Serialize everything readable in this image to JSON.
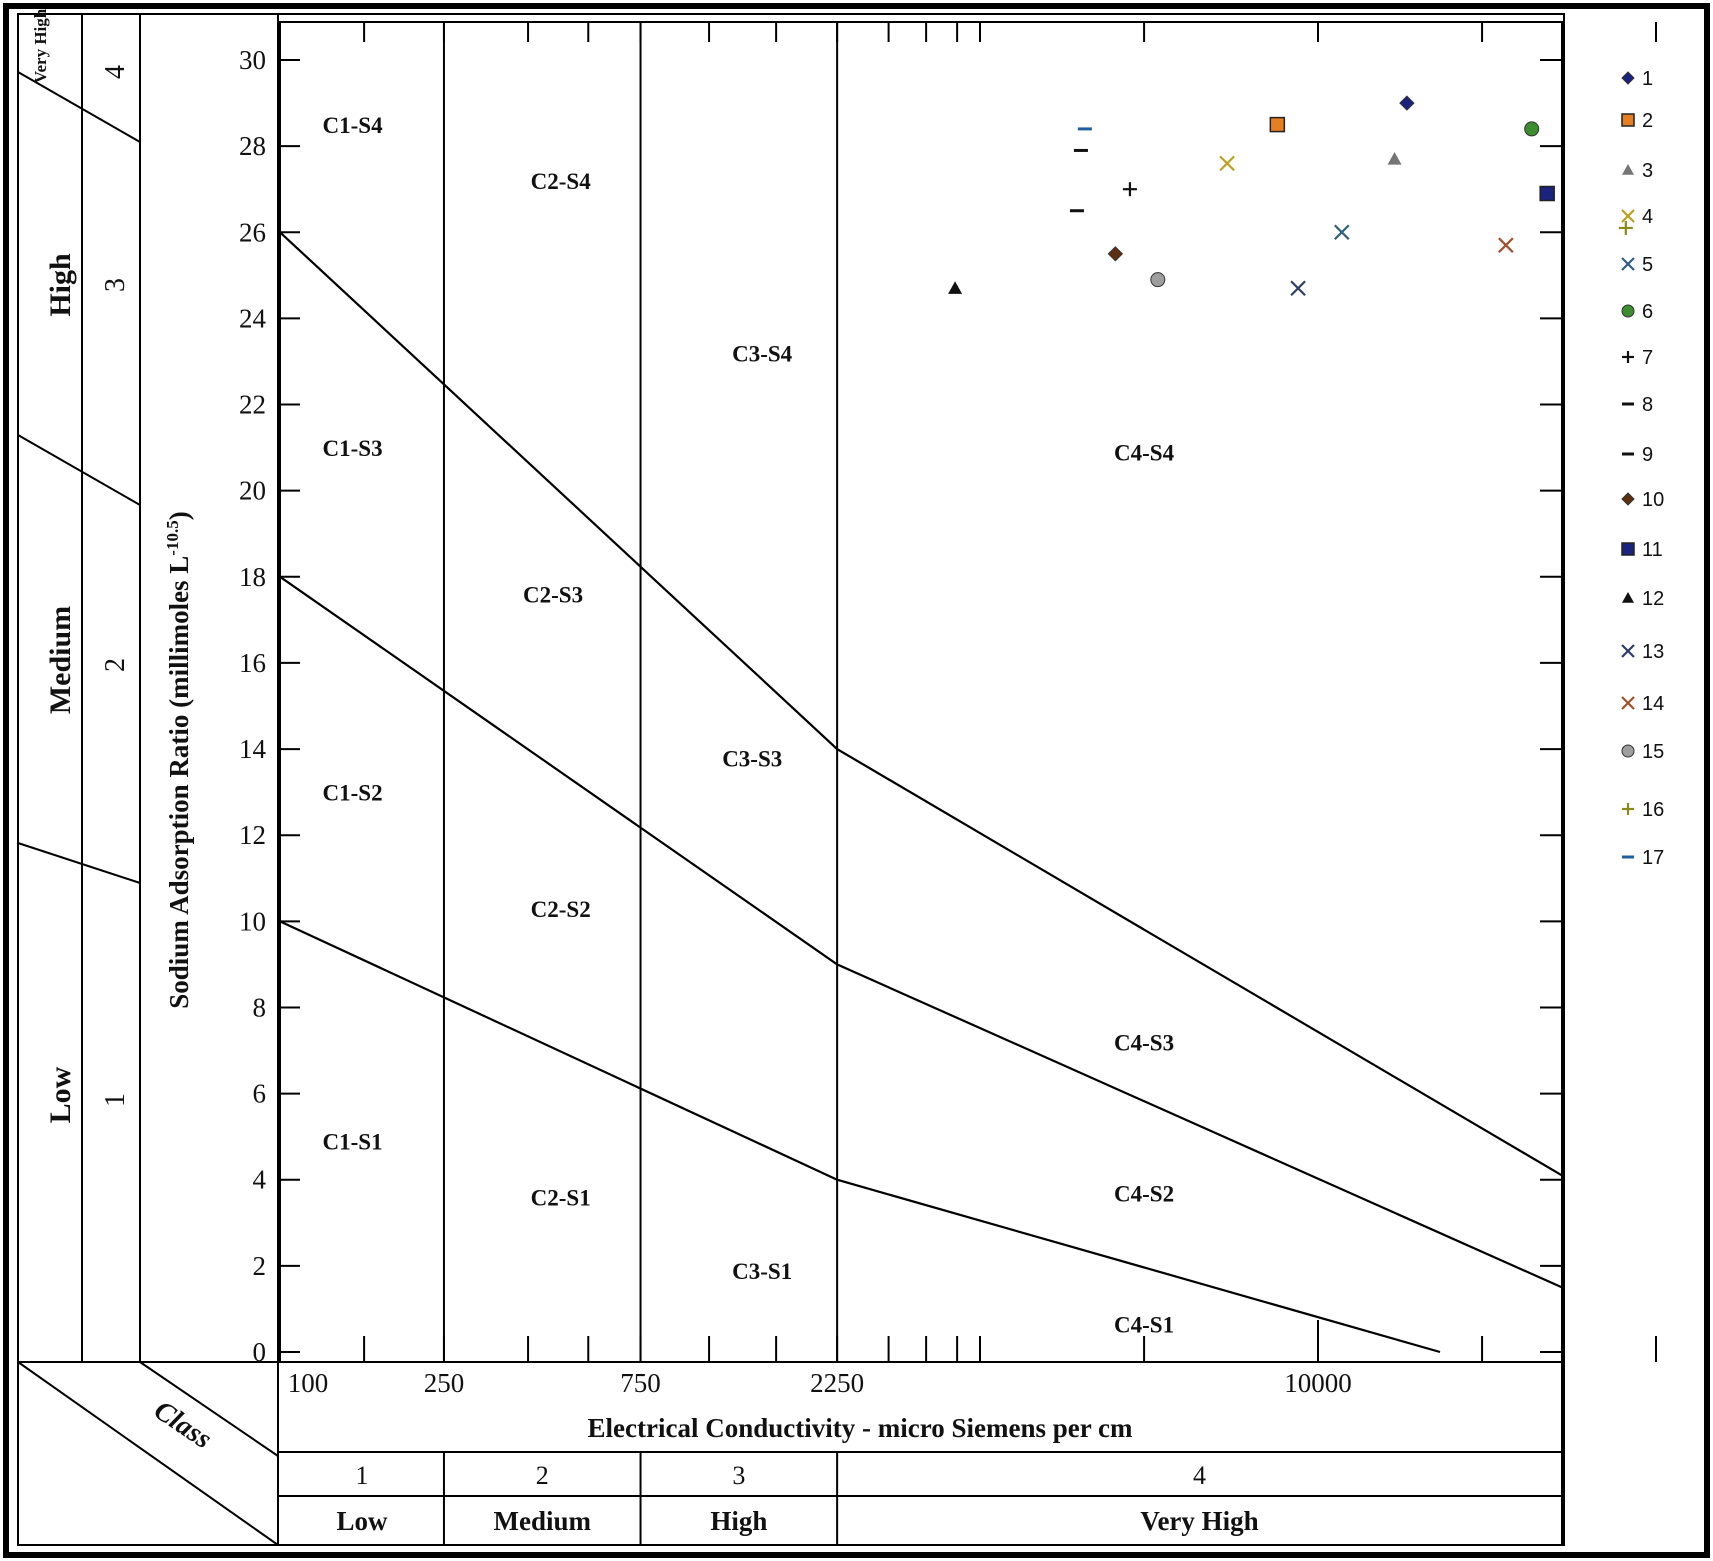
{
  "chart_data": {
    "type": "scatter",
    "title": "",
    "xlabel": "Electrical Conductivity - micro Siemens per cm",
    "ylabel": "Sodium Adsorption Ratio (millimoles L",
    "ylabel_sup": "-1",
    "ylabel_sup2": "0.5",
    "ylabel_end": ")",
    "ylim": [
      0,
      30
    ],
    "y_ticks": [
      "0",
      "2",
      "4",
      "6",
      "8",
      "10",
      "12",
      "14",
      "16",
      "18",
      "20",
      "22",
      "24",
      "26",
      "28",
      "30"
    ],
    "x_tick_labels": [
      "100",
      "250",
      "750",
      "2250",
      "10000"
    ],
    "x_scale": "log",
    "grid": false,
    "legend_position": "right",
    "class_label": "Class",
    "salinity_classes": [
      {
        "num": "1",
        "label": "Low"
      },
      {
        "num": "2",
        "label": "Medium"
      },
      {
        "num": "3",
        "label": "High"
      },
      {
        "num": "4",
        "label": "Very High"
      }
    ],
    "sodium_classes": [
      {
        "num": "1",
        "label": "Low"
      },
      {
        "num": "2",
        "label": "Medium"
      },
      {
        "num": "3",
        "label": "High"
      },
      {
        "num": "4",
        "label": "Very High"
      }
    ],
    "zones": [
      {
        "label": "C1-S4",
        "x": 150,
        "y": 28.3
      },
      {
        "label": "C2-S4",
        "x": 480,
        "y": 27.0
      },
      {
        "label": "C1-S3",
        "x": 150,
        "y": 20.8
      },
      {
        "label": "C2-S3",
        "x": 460,
        "y": 17.4
      },
      {
        "label": "C3-S4",
        "x": 1480,
        "y": 23.0
      },
      {
        "label": "C4-S4",
        "x": 7000,
        "y": 20.7
      },
      {
        "label": "C3-S3",
        "x": 1400,
        "y": 13.6
      },
      {
        "label": "C1-S2",
        "x": 150,
        "y": 12.8
      },
      {
        "label": "C2-S2",
        "x": 480,
        "y": 10.1
      },
      {
        "label": "C4-S3",
        "x": 7000,
        "y": 7.0
      },
      {
        "label": "C1-S1",
        "x": 150,
        "y": 4.7
      },
      {
        "label": "C2-S1",
        "x": 480,
        "y": 3.4
      },
      {
        "label": "C4-S2",
        "x": 7000,
        "y": 3.5
      },
      {
        "label": "C3-S1",
        "x": 1480,
        "y": 1.7
      },
      {
        "label": "C4-S1",
        "x": 7000,
        "y": 0.45
      }
    ],
    "series": [
      {
        "name": "1",
        "marker": "diamond",
        "color": "#1a237e",
        "x": 12000,
        "y": 29.0
      },
      {
        "name": "2",
        "marker": "square",
        "color": "#e67e22",
        "x": 9200,
        "y": 28.5
      },
      {
        "name": "3",
        "marker": "triangle",
        "color": "#757575",
        "x": 11700,
        "y": 27.7
      },
      {
        "name": "4",
        "marker": "x",
        "color": "#b8a11f",
        "x": 8300,
        "y": 27.6
      },
      {
        "name": "5",
        "marker": "x",
        "color": "#2e5d7e",
        "x": 10500,
        "y": 26.0
      },
      {
        "name": "6",
        "marker": "circle",
        "color": "#3c8d2f",
        "x": 15500,
        "y": 28.4
      },
      {
        "name": "7",
        "marker": "plus",
        "color": "#111111",
        "x": 6800,
        "y": 27.0
      },
      {
        "name": "8",
        "marker": "dash",
        "color": "#111111",
        "x": 6150,
        "y": 27.9
      },
      {
        "name": "9",
        "marker": "dash",
        "color": "#111111",
        "x": 6100,
        "y": 26.5
      },
      {
        "name": "10",
        "marker": "diamond",
        "color": "#5d2e0f",
        "x": 6600,
        "y": 25.5
      },
      {
        "name": "11",
        "marker": "square",
        "color": "#1a237e",
        "x": 16000,
        "y": 26.9
      },
      {
        "name": "12",
        "marker": "triangle",
        "color": "#111111",
        "x": 4350,
        "y": 24.7
      },
      {
        "name": "13",
        "marker": "x",
        "color": "#2c3e66",
        "x": 9600,
        "y": 24.7
      },
      {
        "name": "14",
        "marker": "x",
        "color": "#a0522d",
        "x": 14700,
        "y": 25.7
      },
      {
        "name": "15",
        "marker": "circle",
        "color": "#9e9e9e",
        "x": 7200,
        "y": 24.9
      },
      {
        "name": "16",
        "marker": "plus",
        "color": "#8a8a1a",
        "x": 18800,
        "y": 26.1
      },
      {
        "name": "17",
        "marker": "dash",
        "color": "#1f5fa0",
        "x": 6200,
        "y": 28.4
      }
    ]
  }
}
